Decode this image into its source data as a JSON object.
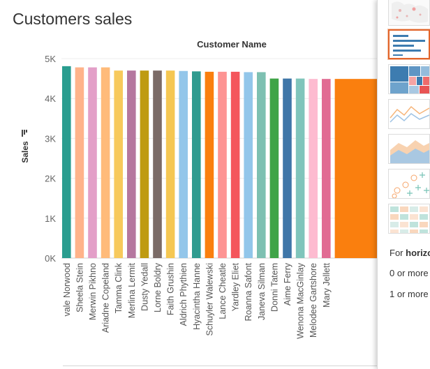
{
  "page": {
    "title": "Customers sales"
  },
  "show_me": {
    "thumbnails": [
      {
        "icon": "symbol-map-thumb"
      },
      {
        "icon": "horizontal-bars-thumb",
        "selected": true
      },
      {
        "icon": "treemap-thumb"
      },
      {
        "icon": "lines-thumb"
      },
      {
        "icon": "area-chart-thumb"
      },
      {
        "icon": "scatter-plot-thumb"
      },
      {
        "icon": "highlight-table-thumb"
      }
    ],
    "hint_prefix": "For ",
    "hint_bold": "horizo",
    "req1": "0 or more",
    "req2": "1 or more",
    "accent": "#e2652b"
  },
  "chart_data": {
    "type": "bar",
    "title": "Customer Name",
    "xlabel": "",
    "ylabel": "Sales",
    "yticks": [
      "0K",
      "1K",
      "2K",
      "3K",
      "4K",
      "5K"
    ],
    "ylim": [
      0,
      5000
    ],
    "grid": true,
    "categories": [
      "vale Norwood",
      "Sheela Stein",
      "Merwin Pikhno",
      "Ariadne Copeland",
      "Tamma Clink",
      "Merlina Lermit",
      "Dusty Yedall",
      "Lorne Boldry",
      "Faith Grushin",
      "Aldrich Phythien",
      "Hyacintha Hanne",
      "Schuyler Walewski",
      "Lance Cheatle",
      "Yardley Eliet",
      "Roanna Safont",
      "Janeva Silman",
      "Donni Tatem",
      "Aime Ferry",
      "Wenona MacGinlay",
      "Melodee Gartshore",
      "Mary Jellett"
    ],
    "values": [
      4810,
      4780,
      4780,
      4780,
      4700,
      4700,
      4700,
      4700,
      4700,
      4690,
      4680,
      4670,
      4670,
      4670,
      4660,
      4660,
      4500,
      4500,
      4500,
      4490,
      4490
    ],
    "colors": [
      "#2a9d8f",
      "#ffb38a",
      "#e39fc8",
      "#ffbb7a",
      "#f7c95c",
      "#b5779f",
      "#bf9b12",
      "#7b6b67",
      "#f5c752",
      "#93c6ea",
      "#2f9b8f",
      "#fa7f0e",
      "#fd9493",
      "#f4565c",
      "#92c6ea",
      "#7dc0b1",
      "#3fa447",
      "#3f76a8",
      "#80c5bb",
      "#fdbbd0",
      "#e16b93"
    ]
  }
}
